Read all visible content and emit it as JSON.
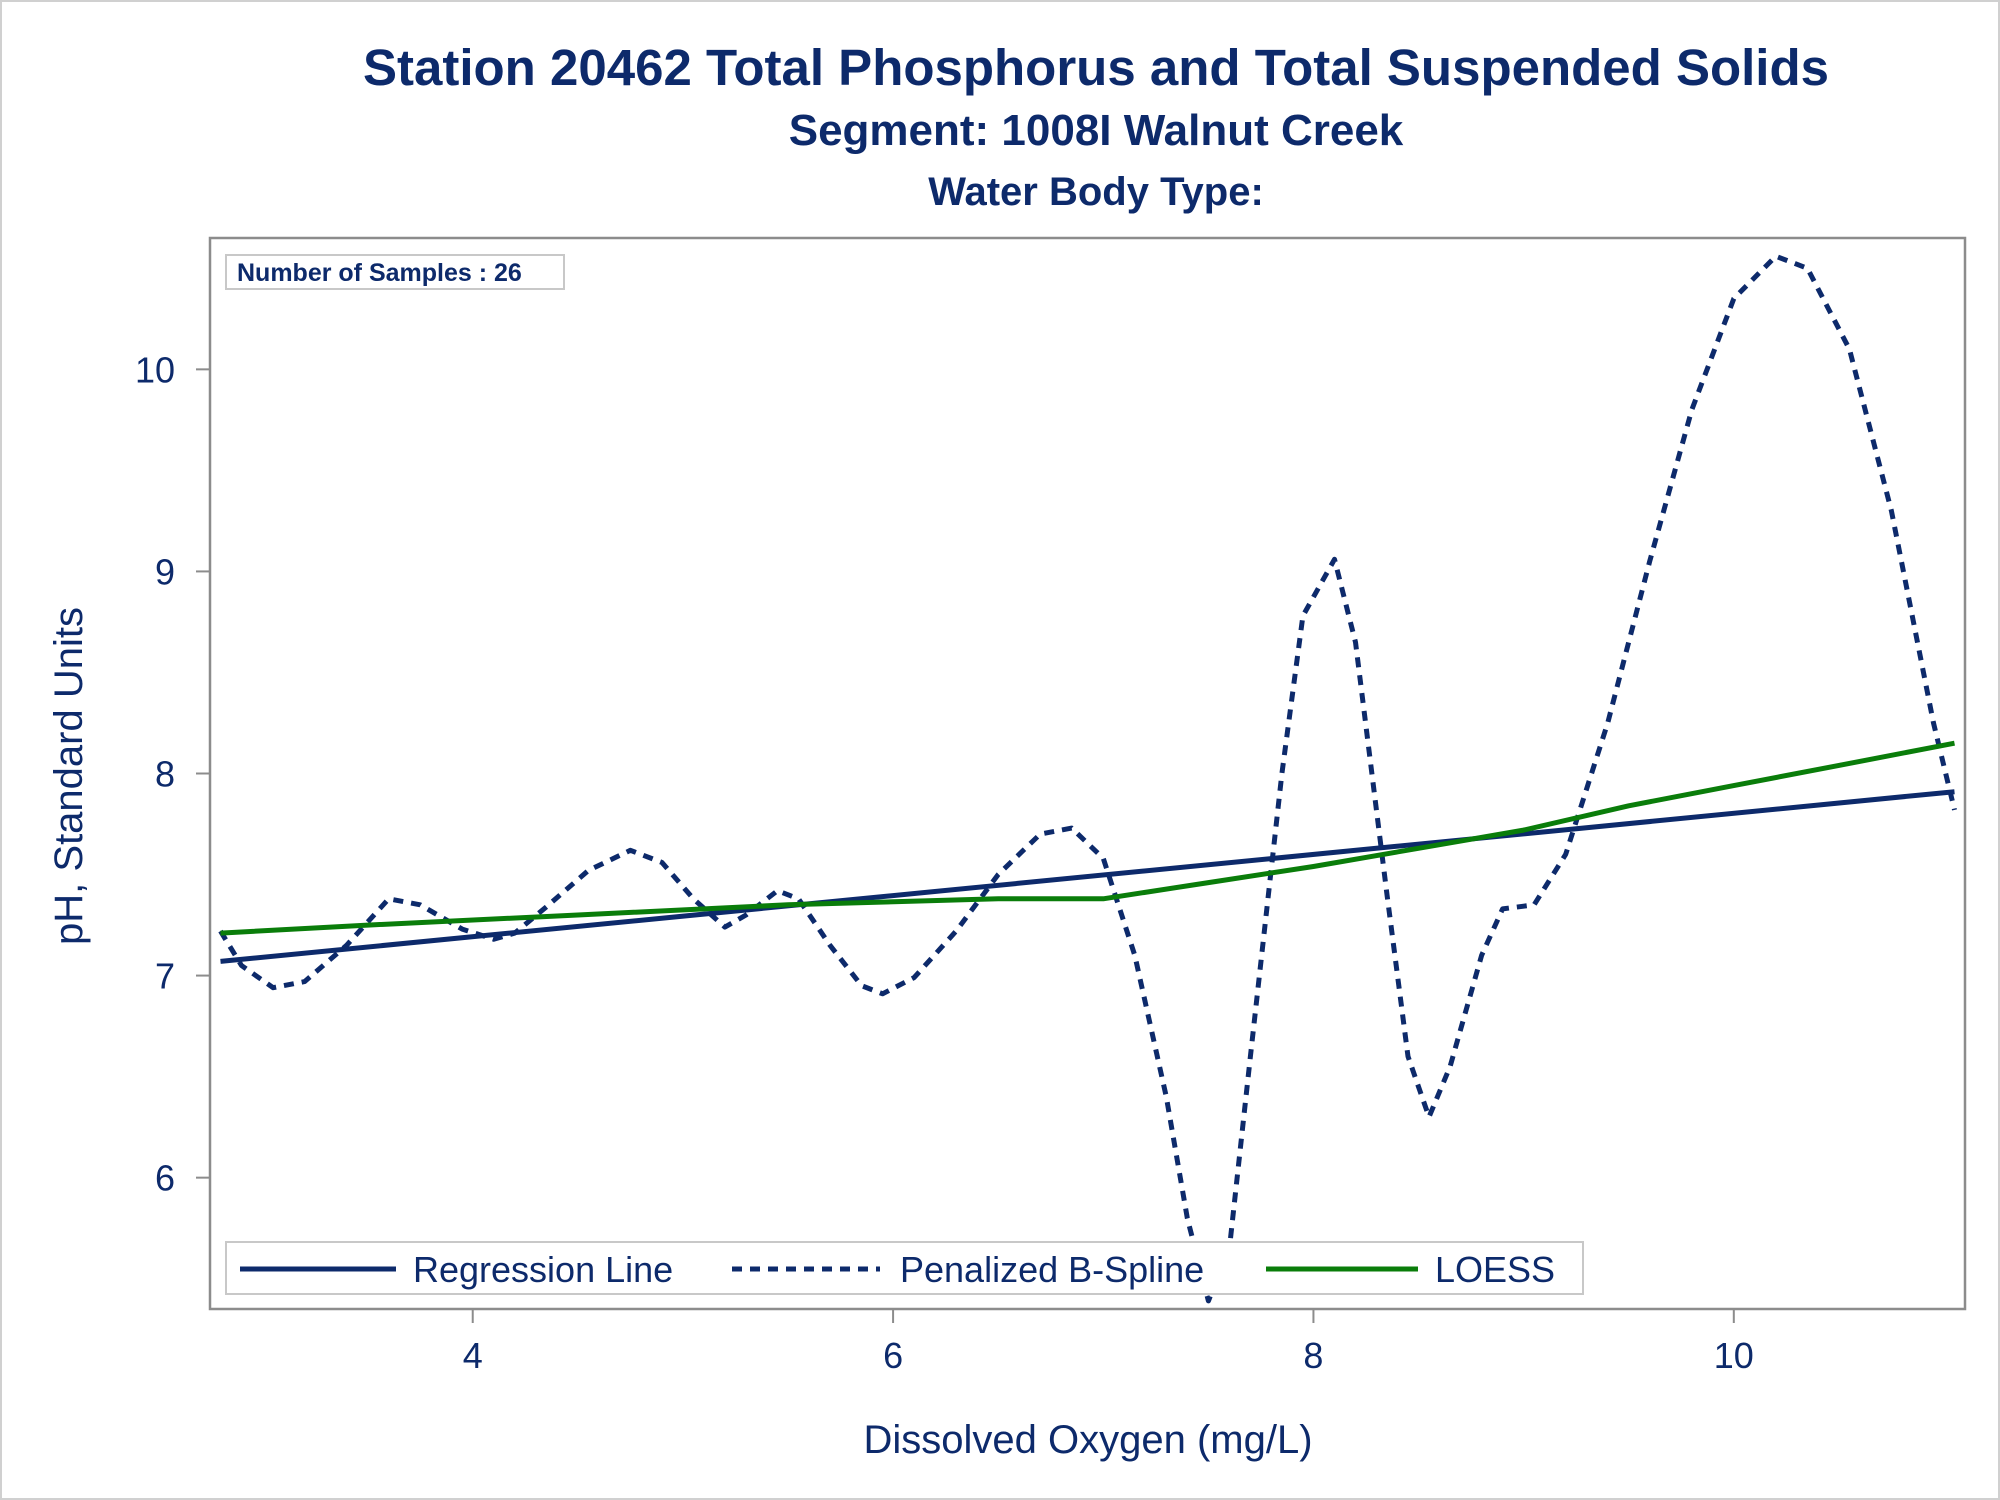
{
  "titles": {
    "line1": "Station 20462  Total Phosphorus and Total Suspended Solids",
    "line2": "Segment: 1008I  Walnut Creek",
    "line3": "Water Body Type:"
  },
  "inset": {
    "text": "Number of Samples : 26"
  },
  "colors": {
    "text": "#0d2a6b",
    "regression": "#0d2a6b",
    "spline": "#0d2a6b",
    "loess": "#0a7d0a",
    "frame": "#8c8c8c"
  },
  "chart_data": {
    "type": "line",
    "title": "Station 20462  Total Phosphorus and Total Suspended Solids",
    "xlabel": "Dissolved Oxygen (mg/L)",
    "ylabel": "pH, Standard Units",
    "xlim": [
      2.75,
      11.1
    ],
    "ylim": [
      5.35,
      10.65
    ],
    "x_ticks": [
      4,
      6,
      8,
      10
    ],
    "y_ticks": [
      6,
      7,
      8,
      9,
      10
    ],
    "grid": false,
    "legend_position": "bottom-inside",
    "series": [
      {
        "name": "Regression Line",
        "style": "solid",
        "points": [
          [
            2.8,
            7.07
          ],
          [
            11.05,
            7.91
          ]
        ]
      },
      {
        "name": "Penalized B-Spline",
        "style": "dashed",
        "points": [
          [
            2.8,
            7.22
          ],
          [
            2.9,
            7.05
          ],
          [
            3.05,
            6.94
          ],
          [
            3.2,
            6.97
          ],
          [
            3.4,
            7.15
          ],
          [
            3.6,
            7.38
          ],
          [
            3.75,
            7.35
          ],
          [
            3.95,
            7.23
          ],
          [
            4.1,
            7.18
          ],
          [
            4.2,
            7.21
          ],
          [
            4.35,
            7.34
          ],
          [
            4.55,
            7.52
          ],
          [
            4.75,
            7.62
          ],
          [
            4.9,
            7.56
          ],
          [
            5.05,
            7.38
          ],
          [
            5.2,
            7.24
          ],
          [
            5.3,
            7.3
          ],
          [
            5.45,
            7.42
          ],
          [
            5.55,
            7.38
          ],
          [
            5.7,
            7.15
          ],
          [
            5.85,
            6.95
          ],
          [
            5.95,
            6.91
          ],
          [
            6.1,
            6.99
          ],
          [
            6.3,
            7.22
          ],
          [
            6.5,
            7.5
          ],
          [
            6.7,
            7.7
          ],
          [
            6.85,
            7.73
          ],
          [
            7.0,
            7.58
          ],
          [
            7.15,
            7.1
          ],
          [
            7.3,
            6.4
          ],
          [
            7.4,
            5.8
          ],
          [
            7.5,
            5.39
          ],
          [
            7.6,
            5.65
          ],
          [
            7.7,
            6.6
          ],
          [
            7.85,
            8.0
          ],
          [
            7.95,
            8.78
          ],
          [
            8.1,
            9.06
          ],
          [
            8.2,
            8.65
          ],
          [
            8.35,
            7.4
          ],
          [
            8.45,
            6.6
          ],
          [
            8.55,
            6.3
          ],
          [
            8.65,
            6.55
          ],
          [
            8.8,
            7.1
          ],
          [
            8.9,
            7.33
          ],
          [
            9.05,
            7.35
          ],
          [
            9.2,
            7.6
          ],
          [
            9.4,
            8.25
          ],
          [
            9.6,
            9.05
          ],
          [
            9.8,
            9.8
          ],
          [
            10.0,
            10.35
          ],
          [
            10.2,
            10.56
          ],
          [
            10.35,
            10.5
          ],
          [
            10.55,
            10.1
          ],
          [
            10.75,
            9.3
          ],
          [
            10.95,
            8.25
          ],
          [
            11.05,
            7.82
          ]
        ]
      },
      {
        "name": "LOESS",
        "style": "solid",
        "points": [
          [
            2.8,
            7.21
          ],
          [
            3.5,
            7.25
          ],
          [
            4.5,
            7.3
          ],
          [
            5.5,
            7.35
          ],
          [
            6.5,
            7.38
          ],
          [
            7.0,
            7.38
          ],
          [
            7.5,
            7.46
          ],
          [
            8.0,
            7.54
          ],
          [
            8.5,
            7.63
          ],
          [
            9.0,
            7.72
          ],
          [
            9.5,
            7.84
          ],
          [
            10.0,
            7.94
          ],
          [
            10.5,
            8.04
          ],
          [
            11.05,
            8.15
          ]
        ]
      }
    ]
  }
}
